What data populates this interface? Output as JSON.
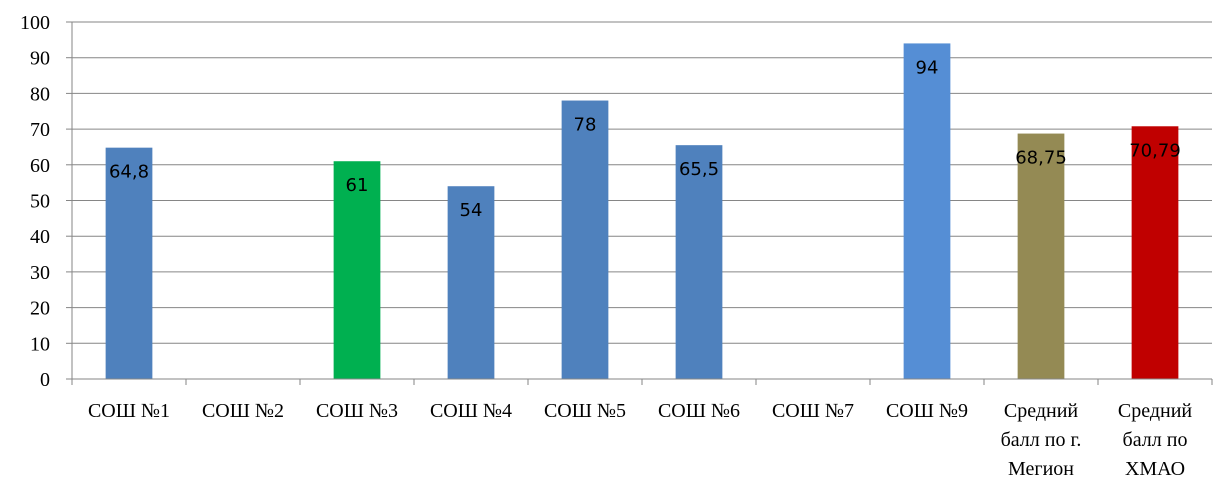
{
  "chart_data": {
    "type": "bar",
    "title": "",
    "xlabel": "",
    "ylabel": "",
    "ylim": [
      0,
      100
    ],
    "yticks": [
      0,
      10,
      20,
      30,
      40,
      50,
      60,
      70,
      80,
      90,
      100
    ],
    "grid": true,
    "legend": "none",
    "categories": [
      [
        "СОШ №1"
      ],
      [
        "СОШ №2"
      ],
      [
        "СОШ №3"
      ],
      [
        "СОШ №4"
      ],
      [
        "СОШ №5"
      ],
      [
        "СОШ №6"
      ],
      [
        "СОШ №7"
      ],
      [
        "СОШ №9"
      ],
      [
        "Средний",
        "балл по г.",
        "Мегион"
      ],
      [
        "Средний",
        "балл по",
        "ХМАО"
      ]
    ],
    "values": [
      64.8,
      null,
      61,
      54,
      78,
      65.5,
      null,
      94,
      68.75,
      70.79
    ],
    "data_labels": [
      "64,8",
      "",
      "61",
      "54",
      "78",
      "65,5",
      "",
      "94",
      "68,75",
      "70,79"
    ],
    "colors": [
      "#4f81bd",
      "#4f81bd",
      "#00b050",
      "#4f81bd",
      "#4f81bd",
      "#4f81bd",
      "#4f81bd",
      "#558ed5",
      "#948a54",
      "#c00000"
    ]
  }
}
